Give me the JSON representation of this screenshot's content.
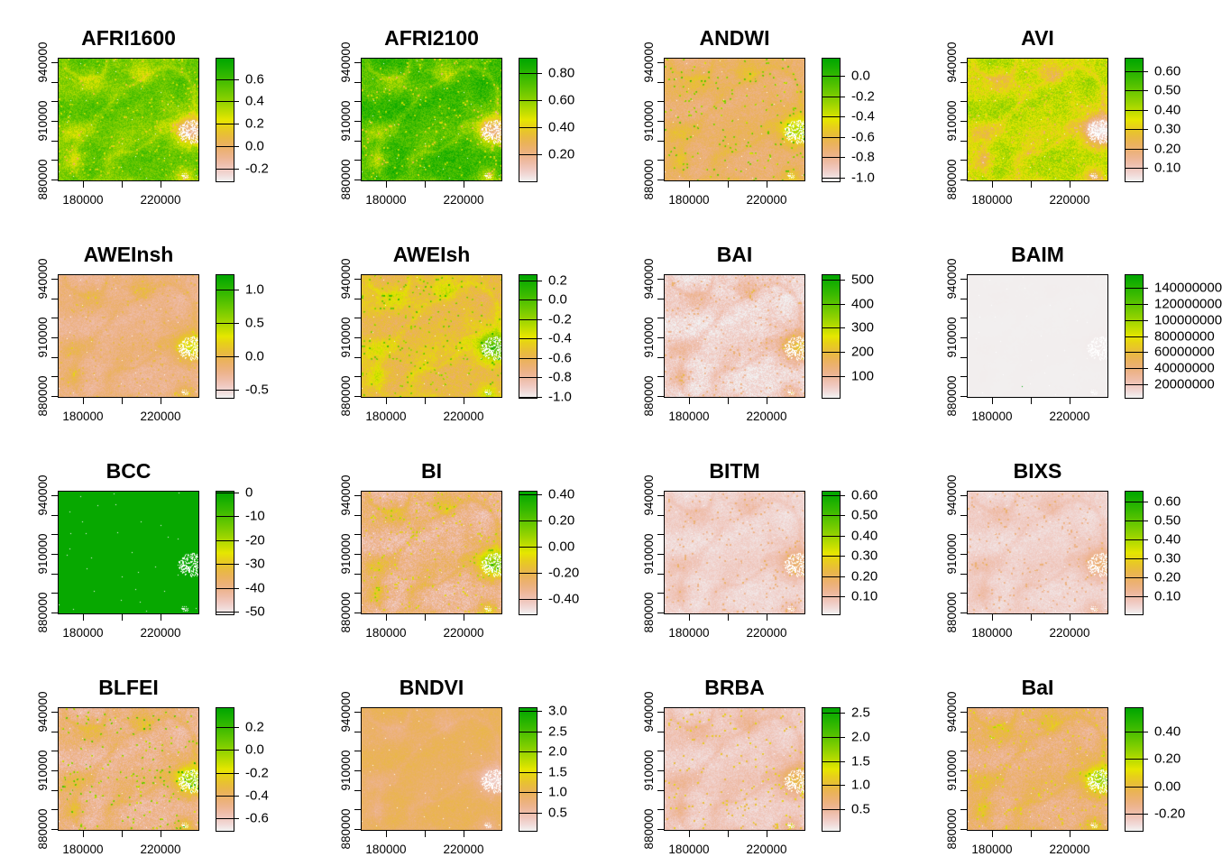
{
  "figure_type": "grid of raster index maps with color legends",
  "palette": {
    "name": "terrain.colors (low to high reversed)",
    "high": "#00A600",
    "mid": "#E6E600",
    "low": "#F2F2F2",
    "na": "#FFFFFF"
  },
  "shared_axes": {
    "x_range": [
      167000,
      240000
    ],
    "y_range": [
      879100,
      942300
    ],
    "x_ticks": [
      180000,
      200000,
      220000
    ],
    "x_labels": [
      {
        "value": 180000,
        "text": "180000"
      },
      {
        "value": 220000,
        "text": "220000"
      }
    ],
    "y_ticks": [
      880000,
      890000,
      900000,
      910000,
      920000,
      930000,
      940000
    ],
    "y_labels": [
      {
        "value": 940000,
        "text": "940000"
      },
      {
        "value": 910000,
        "text": "910000"
      },
      {
        "value": 880000,
        "text": "880000"
      }
    ]
  },
  "chart_data": [
    {
      "type": "heatmap",
      "title": "AFRI1600",
      "zlim": [
        -0.32,
        0.79
      ],
      "legend_ticks": [
        {
          "value": 0.6,
          "text": "0.6"
        },
        {
          "value": 0.4,
          "text": "0.4"
        },
        {
          "value": 0.2,
          "text": "0.2"
        },
        {
          "value": 0.0,
          "text": "0.0"
        },
        {
          "value": -0.2,
          "text": "-0.2"
        }
      ],
      "approx_distribution": {
        "typical": 0.5,
        "spread": 0.15,
        "veg_correlation": 1,
        "speckle": -2
      }
    },
    {
      "type": "heatmap",
      "title": "AFRI2100",
      "zlim": [
        -0.007,
        0.913
      ],
      "legend_ticks": [
        {
          "value": 0.8,
          "text": "0.80"
        },
        {
          "value": 0.6,
          "text": "0.60"
        },
        {
          "value": 0.4,
          "text": "0.40"
        },
        {
          "value": 0.2,
          "text": "0.20"
        }
      ],
      "approx_distribution": {
        "typical": 0.76,
        "spread": 0.14,
        "veg_correlation": 1,
        "speckle": -2.5
      }
    },
    {
      "type": "heatmap",
      "title": "ANDWI",
      "zlim": [
        -1.044,
        0.177
      ],
      "legend_ticks": [
        {
          "value": 0.0,
          "text": "0.0"
        },
        {
          "value": -0.2,
          "text": "-0.2"
        },
        {
          "value": -0.4,
          "text": "-0.4"
        },
        {
          "value": -0.6,
          "text": "-0.6"
        },
        {
          "value": -0.8,
          "text": "-0.8"
        },
        {
          "value": -1.0,
          "text": "-1.0"
        }
      ],
      "approx_distribution": {
        "typical": -0.72,
        "spread": 0.1,
        "veg_correlation": -1,
        "speckle": 6
      }
    },
    {
      "type": "heatmap",
      "title": "AVI",
      "zlim": [
        0.025,
        0.67
      ],
      "legend_ticks": [
        {
          "value": 0.6,
          "text": "0.60"
        },
        {
          "value": 0.5,
          "text": "0.50"
        },
        {
          "value": 0.4,
          "text": "0.40"
        },
        {
          "value": 0.3,
          "text": "0.30"
        },
        {
          "value": 0.2,
          "text": "0.20"
        },
        {
          "value": 0.1,
          "text": "0.10"
        }
      ],
      "approx_distribution": {
        "typical": 0.39,
        "spread": 0.09,
        "veg_correlation": 1,
        "speckle": -1.5
      }
    },
    {
      "type": "heatmap",
      "title": "AWEInsh",
      "zlim": [
        -0.635,
        1.23
      ],
      "legend_ticks": [
        {
          "value": 1.0,
          "text": "1.0"
        },
        {
          "value": 0.5,
          "text": "0.5"
        },
        {
          "value": 0.0,
          "text": "0.0"
        },
        {
          "value": -0.5,
          "text": "-0.5"
        }
      ],
      "approx_distribution": {
        "typical": -0.25,
        "spread": 0.14,
        "veg_correlation": -1,
        "speckle": 2
      }
    },
    {
      "type": "heatmap",
      "title": "AWEIsh",
      "zlim": [
        -1.019,
        0.265
      ],
      "legend_ticks": [
        {
          "value": 0.2,
          "text": "0.2"
        },
        {
          "value": 0.0,
          "text": "0.0"
        },
        {
          "value": -0.2,
          "text": "-0.2"
        },
        {
          "value": -0.4,
          "text": "-0.4"
        },
        {
          "value": -0.6,
          "text": "-0.6"
        },
        {
          "value": -0.8,
          "text": "-0.8"
        },
        {
          "value": -1.0,
          "text": "-1.0"
        }
      ],
      "approx_distribution": {
        "typical": -0.56,
        "spread": 0.14,
        "veg_correlation": -1,
        "speckle": 3.5
      }
    },
    {
      "type": "heatmap",
      "title": "BAI",
      "zlim": [
        6.5,
        522
      ],
      "legend_ticks": [
        {
          "value": 500,
          "text": "500"
        },
        {
          "value": 400,
          "text": "400"
        },
        {
          "value": 300,
          "text": "300"
        },
        {
          "value": 200,
          "text": "200"
        },
        {
          "value": 100,
          "text": "100"
        }
      ],
      "approx_distribution": {
        "typical": 35,
        "spread": 40,
        "veg_correlation": -1,
        "speckle": 2.5
      }
    },
    {
      "type": "heatmap",
      "title": "BAIM",
      "zlim": [
        2000000,
        157200000
      ],
      "legend_ticks": [
        {
          "value": 140000000,
          "text": "140000000"
        },
        {
          "value": 120000000,
          "text": "120000000"
        },
        {
          "value": 100000000,
          "text": "100000000"
        },
        {
          "value": 80000000,
          "text": "80000000"
        },
        {
          "value": 60000000,
          "text": "60000000"
        },
        {
          "value": 40000000,
          "text": "40000000"
        },
        {
          "value": 20000000,
          "text": "20000000"
        }
      ],
      "approx_distribution": {
        "typical": 3000000,
        "spread": 300000,
        "veg_correlation": -1,
        "speckle": 0
      },
      "outlier_points": [
        {
          "x": 195400,
          "y": 885100,
          "value": 157000000
        }
      ]
    },
    {
      "type": "heatmap",
      "title": "BCC",
      "zlim": [
        -51.5,
        0.76
      ],
      "legend_ticks": [
        {
          "value": 0,
          "text": "0"
        },
        {
          "value": -10,
          "text": "-10"
        },
        {
          "value": -20,
          "text": "-20"
        },
        {
          "value": -30,
          "text": "-30"
        },
        {
          "value": -40,
          "text": "-40"
        },
        {
          "value": -50,
          "text": "-50"
        }
      ],
      "approx_distribution": {
        "typical": -0.3,
        "spread": 0.3,
        "veg_correlation": 0,
        "speckle": 0
      }
    },
    {
      "type": "heatmap",
      "title": "BI",
      "zlim": [
        -0.524,
        0.428
      ],
      "legend_ticks": [
        {
          "value": 0.4,
          "text": "0.40"
        },
        {
          "value": 0.2,
          "text": "0.20"
        },
        {
          "value": 0.0,
          "text": "0.00"
        },
        {
          "value": -0.2,
          "text": "-0.20"
        },
        {
          "value": -0.4,
          "text": "-0.40"
        }
      ],
      "approx_distribution": {
        "typical": -0.34,
        "spread": 0.12,
        "veg_correlation": -1,
        "speckle": 2.5
      }
    },
    {
      "type": "heatmap",
      "title": "BITM",
      "zlim": [
        0.006,
        0.622
      ],
      "legend_ticks": [
        {
          "value": 0.6,
          "text": "0.60"
        },
        {
          "value": 0.5,
          "text": "0.50"
        },
        {
          "value": 0.4,
          "text": "0.40"
        },
        {
          "value": 0.3,
          "text": "0.30"
        },
        {
          "value": 0.2,
          "text": "0.20"
        },
        {
          "value": 0.1,
          "text": "0.10"
        }
      ],
      "approx_distribution": {
        "typical": 0.045,
        "spread": 0.03,
        "veg_correlation": -1,
        "speckle": 4
      }
    },
    {
      "type": "heatmap",
      "title": "BIXS",
      "zlim": [
        0.0,
        0.657
      ],
      "legend_ticks": [
        {
          "value": 0.6,
          "text": "0.60"
        },
        {
          "value": 0.5,
          "text": "0.50"
        },
        {
          "value": 0.4,
          "text": "0.40"
        },
        {
          "value": 0.3,
          "text": "0.30"
        },
        {
          "value": 0.2,
          "text": "0.20"
        },
        {
          "value": 0.1,
          "text": "0.10"
        }
      ],
      "approx_distribution": {
        "typical": 0.045,
        "spread": 0.03,
        "veg_correlation": -1,
        "speckle": 4
      }
    },
    {
      "type": "heatmap",
      "title": "BLFEI",
      "zlim": [
        -0.719,
        0.375
      ],
      "legend_ticks": [
        {
          "value": 0.2,
          "text": "0.2"
        },
        {
          "value": 0.0,
          "text": "0.0"
        },
        {
          "value": -0.2,
          "text": "-0.2"
        },
        {
          "value": -0.4,
          "text": "-0.4"
        },
        {
          "value": -0.6,
          "text": "-0.6"
        }
      ],
      "approx_distribution": {
        "typical": -0.5,
        "spread": 0.12,
        "veg_correlation": -1,
        "speckle": 5
      }
    },
    {
      "type": "heatmap",
      "title": "BNDVI",
      "zlim": [
        0.035,
        3.088
      ],
      "legend_ticks": [
        {
          "value": 3.0,
          "text": "3.0"
        },
        {
          "value": 2.5,
          "text": "2.5"
        },
        {
          "value": 2.0,
          "text": "2.0"
        },
        {
          "value": 1.5,
          "text": "1.5"
        },
        {
          "value": 1.0,
          "text": "1.0"
        },
        {
          "value": 0.5,
          "text": "0.5"
        }
      ],
      "approx_distribution": {
        "typical": 0.95,
        "spread": 0.16,
        "veg_correlation": 1,
        "speckle": -1
      }
    },
    {
      "type": "heatmap",
      "title": "BRBA",
      "zlim": [
        0.033,
        2.612
      ],
      "legend_ticks": [
        {
          "value": 2.5,
          "text": "2.5"
        },
        {
          "value": 2.0,
          "text": "2.0"
        },
        {
          "value": 1.5,
          "text": "1.5"
        },
        {
          "value": 1.0,
          "text": "1.0"
        },
        {
          "value": 0.5,
          "text": "0.5"
        }
      ],
      "approx_distribution": {
        "typical": 0.27,
        "spread": 0.16,
        "veg_correlation": -1,
        "speckle": 6
      }
    },
    {
      "type": "heatmap",
      "title": "BaI",
      "zlim": [
        -0.332,
        0.578
      ],
      "legend_ticks": [
        {
          "value": 0.4,
          "text": "0.40"
        },
        {
          "value": 0.2,
          "text": "0.20"
        },
        {
          "value": 0.0,
          "text": "0.00"
        },
        {
          "value": -0.2,
          "text": "-0.20"
        }
      ],
      "approx_distribution": {
        "typical": -0.12,
        "spread": 0.09,
        "veg_correlation": -1,
        "speckle": 2.5
      }
    }
  ]
}
